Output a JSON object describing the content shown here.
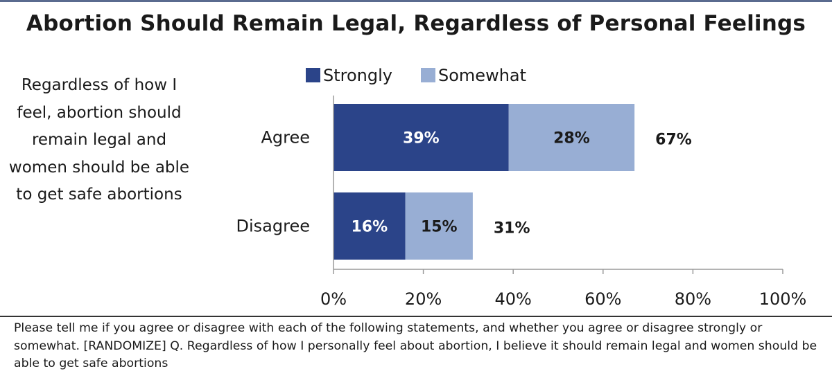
{
  "title": "Abortion Should Remain Legal, Regardless of Personal Feelings",
  "statement": "Regardless of how I feel, abortion should remain legal and women should be able to get safe abortions",
  "footnote": "Please tell me if you agree or disagree with each of the following statements, and whether you agree or disagree strongly or somewhat. [RANDOMIZE] Q. Regardless of how I personally feel about abortion, I believe it should remain legal and women should be able to get safe abortions",
  "colors": {
    "strongly": "#2b4489",
    "somewhat": "#98aed4",
    "axis": "#9a9a9a",
    "rule": "#5a6b8f"
  },
  "chart_data": {
    "type": "bar",
    "orientation": "horizontal",
    "stacked": true,
    "categories": [
      "Agree",
      "Disagree"
    ],
    "series": [
      {
        "name": "Strongly",
        "values": [
          39,
          16
        ],
        "labels": [
          "39%",
          "16%"
        ]
      },
      {
        "name": "Somewhat",
        "values": [
          28,
          15
        ],
        "labels": [
          "28%",
          "15%"
        ]
      }
    ],
    "totals": [
      "67%",
      "31%"
    ],
    "xlim": [
      0,
      100
    ],
    "x_ticks": [
      "0%",
      "20%",
      "40%",
      "60%",
      "80%",
      "100%"
    ],
    "grid": false,
    "legend": "top"
  }
}
